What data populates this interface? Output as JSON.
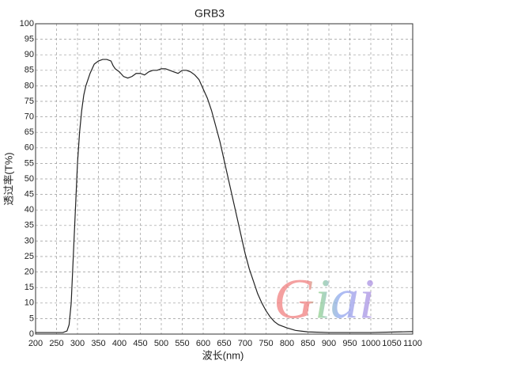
{
  "chart_data": {
    "type": "line",
    "title": "GRB3",
    "x_label": "波长(nm)",
    "y_label": "透过率(T%)",
    "watermark": "Giai",
    "x": [
      200,
      250,
      265,
      275,
      280,
      285,
      290,
      295,
      300,
      305,
      310,
      315,
      320,
      330,
      340,
      350,
      360,
      370,
      380,
      385,
      390,
      400,
      410,
      420,
      430,
      440,
      450,
      460,
      470,
      480,
      490,
      500,
      510,
      520,
      530,
      540,
      550,
      560,
      570,
      580,
      590,
      600,
      610,
      620,
      630,
      640,
      650,
      660,
      670,
      680,
      690,
      700,
      710,
      720,
      730,
      740,
      750,
      760,
      770,
      780,
      800,
      820,
      850,
      900,
      950,
      1000,
      1100
    ],
    "series": [
      {
        "name": "GRB3",
        "color": "#222222",
        "values": [
          0.5,
          0.5,
          0.5,
          1,
          3,
          10,
          25,
          40,
          55,
          65,
          72,
          77,
          80,
          84,
          87,
          88,
          88.5,
          88.5,
          88,
          86.5,
          85.5,
          84.5,
          83,
          82.5,
          83,
          84,
          84,
          83.5,
          84.5,
          85,
          85,
          85.5,
          85.5,
          85,
          84.5,
          84,
          85,
          85,
          84.5,
          83.5,
          82,
          79,
          76,
          72,
          67,
          62,
          56,
          50,
          44,
          38,
          32,
          26,
          21,
          17,
          13,
          10,
          7.5,
          5.5,
          4,
          3,
          2,
          1.2,
          0.7,
          0.5,
          0.5,
          0.5,
          0.8
        ]
      }
    ],
    "xlim": [
      200,
      1100
    ],
    "xticks": [
      200,
      250,
      300,
      350,
      400,
      450,
      500,
      550,
      600,
      650,
      700,
      750,
      800,
      850,
      900,
      950,
      1000,
      1050,
      1100
    ],
    "ylim": [
      0,
      100
    ],
    "yticks": [
      0,
      5,
      10,
      15,
      20,
      25,
      30,
      35,
      40,
      45,
      50,
      55,
      60,
      65,
      70,
      75,
      80,
      85,
      90,
      95,
      100
    ],
    "grid": true
  }
}
